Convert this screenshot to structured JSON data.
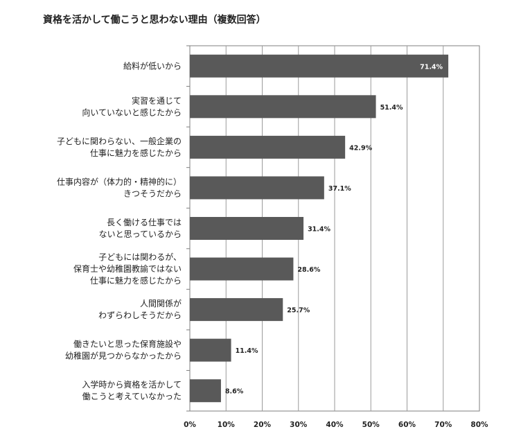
{
  "chart_data": {
    "type": "bar",
    "orientation": "horizontal",
    "title": "資格を活かして働こうと思わない理由（複数回答）",
    "categories": [
      [
        "給料が低いから"
      ],
      [
        "実習を通じて",
        "向いていないと感じたから"
      ],
      [
        "子どもに関わらない、一般企業の",
        "仕事に魅力を感じたから"
      ],
      [
        "仕事内容が（体力的・精神的に）",
        "きつそうだから"
      ],
      [
        "長く働ける仕事では",
        "ないと思っているから"
      ],
      [
        "子どもには関わるが、",
        "保育士や幼稚園教諭ではない",
        "仕事に魅力を感じたから"
      ],
      [
        "人間関係が",
        "わずらわしそうだから"
      ],
      [
        "働きたいと思った保育施設や",
        "幼稚園が見つからなかったから"
      ],
      [
        "入学時から資格を活かして",
        "働こうと考えていなかった"
      ]
    ],
    "values": [
      71.4,
      51.4,
      42.9,
      37.1,
      31.4,
      28.6,
      25.7,
      11.4,
      8.6
    ],
    "value_labels": [
      "71.4%",
      "51.4%",
      "42.9%",
      "37.1%",
      "31.4%",
      "28.6%",
      "25.7%",
      "11.4%",
      "8.6%"
    ],
    "xlim": [
      0,
      80
    ],
    "x_ticks": [
      "0%",
      "10%",
      "20%",
      "30%",
      "40%",
      "50%",
      "60%",
      "70%",
      "80%"
    ],
    "grid": true,
    "bar_color": "#595959",
    "grid_color": "#9a9a9a"
  }
}
